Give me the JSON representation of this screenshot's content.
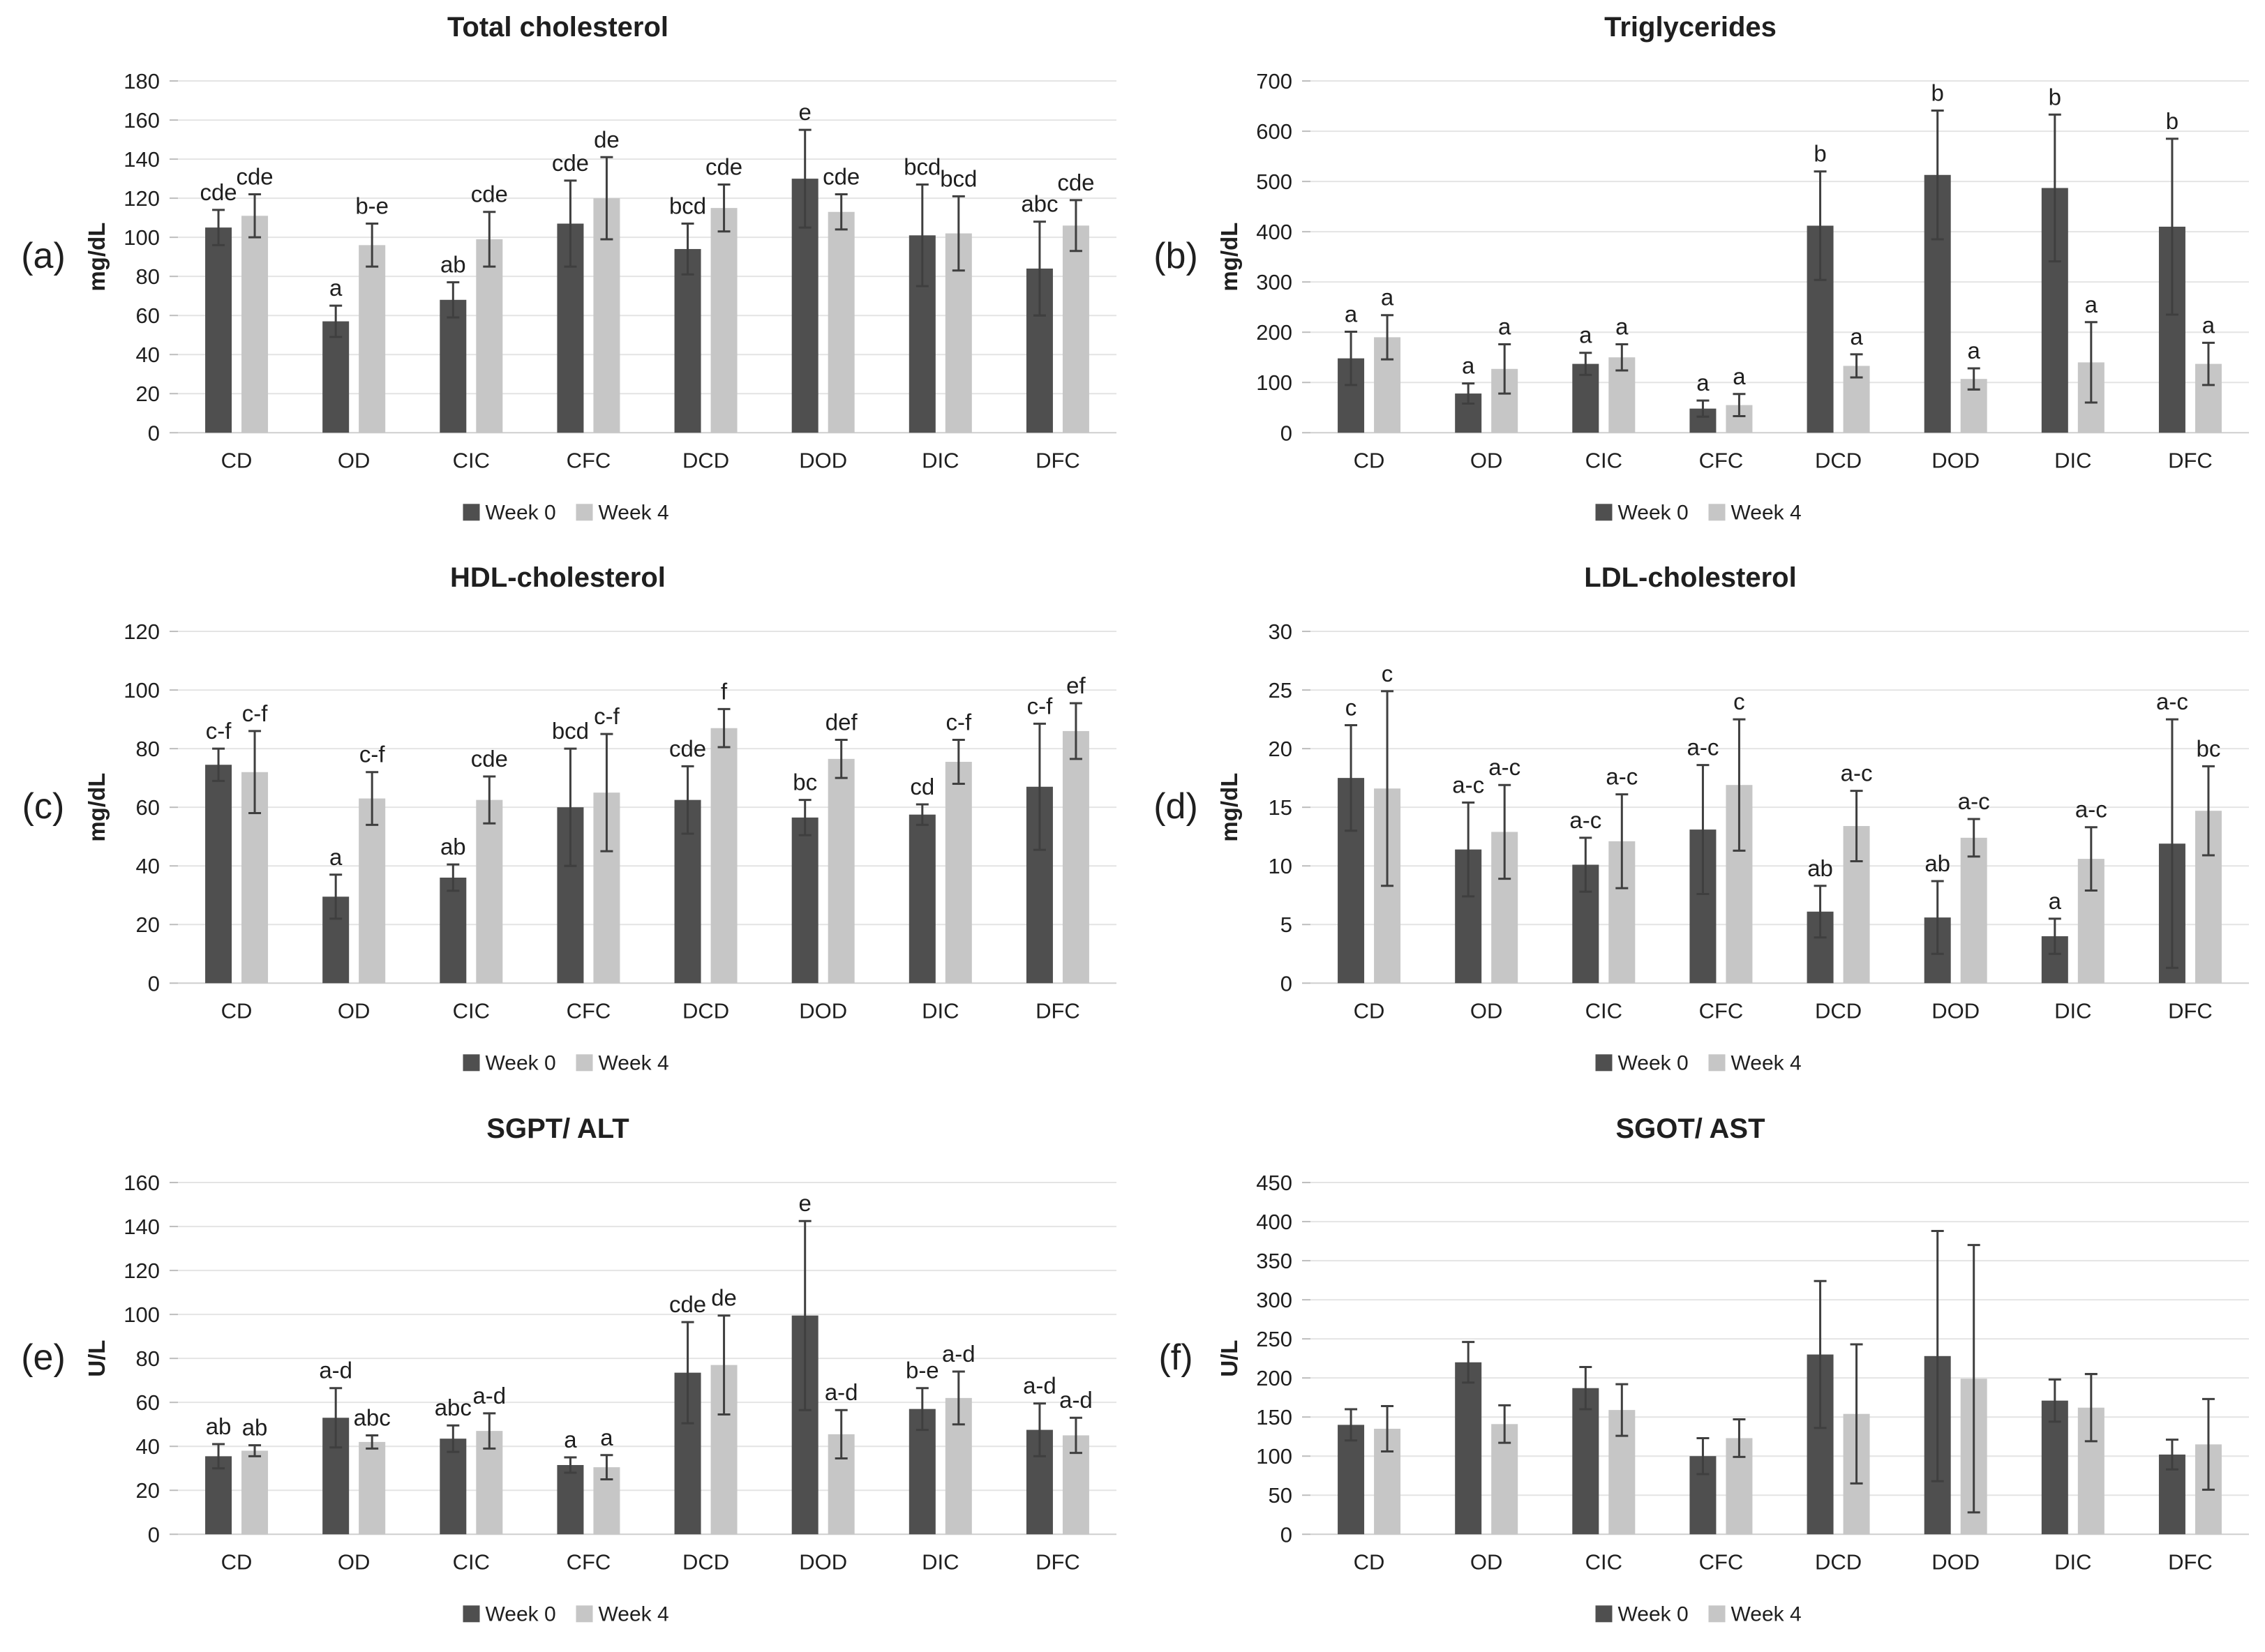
{
  "page": {
    "background": "#ffffff"
  },
  "legend": {
    "items": [
      {
        "label": "Week 0",
        "color": "#4f4f4f"
      },
      {
        "label": "Week 4",
        "color": "#c6c6c6"
      }
    ],
    "position": "bottom-center"
  },
  "style": {
    "gridline_color": "#e4e4e4",
    "baseline_color": "#cfcfcf",
    "tick_color": "#bdbdbd",
    "error_color": "#3f3f3f",
    "text_color": "#1f1f1f"
  },
  "chart_data": [
    {
      "id": "a",
      "panel_label": "(a)",
      "type": "bar",
      "title": "Total cholesterol",
      "ylabel": "mg/dL",
      "ylim": [
        0,
        180
      ],
      "ytick_step": 20,
      "grid": true,
      "categories": [
        "CD",
        "OD",
        "CIC",
        "CFC",
        "DCD",
        "DOD",
        "DIC",
        "DFC"
      ],
      "series": [
        {
          "name": "Week 0",
          "values": [
            105,
            57,
            68,
            107,
            94,
            130,
            101,
            84
          ],
          "errors": [
            9,
            8,
            9,
            22,
            13,
            25,
            26,
            24
          ],
          "sig_labels": [
            "cde",
            "a",
            "ab",
            "cde",
            "bcd",
            "e",
            "bcd",
            "abc"
          ]
        },
        {
          "name": "Week 4",
          "values": [
            111,
            96,
            99,
            120,
            115,
            113,
            102,
            106
          ],
          "errors": [
            11,
            11,
            14,
            21,
            12,
            9,
            19,
            13
          ],
          "sig_labels": [
            "cde",
            "b-e",
            "cde",
            "de",
            "cde",
            "cde",
            "bcd",
            "cde"
          ]
        }
      ]
    },
    {
      "id": "b",
      "panel_label": "(b)",
      "type": "bar",
      "title": "Triglycerides",
      "ylabel": "mg/dL",
      "ylim": [
        0,
        700
      ],
      "ytick_step": 100,
      "grid": true,
      "categories": [
        "CD",
        "OD",
        "CIC",
        "CFC",
        "DCD",
        "DOD",
        "DIC",
        "DFC"
      ],
      "series": [
        {
          "name": "Week 0",
          "values": [
            148,
            78,
            137,
            48,
            412,
            513,
            487,
            410
          ],
          "errors": [
            53,
            20,
            22,
            16,
            108,
            128,
            146,
            175
          ],
          "sig_labels": [
            "a",
            "a",
            "a",
            "a",
            "b",
            "b",
            "b",
            "b"
          ]
        },
        {
          "name": "Week 4",
          "values": [
            190,
            127,
            150,
            55,
            133,
            107,
            140,
            137
          ],
          "errors": [
            44,
            49,
            26,
            22,
            23,
            21,
            80,
            42
          ],
          "sig_labels": [
            "a",
            "a",
            "a",
            "a",
            "a",
            "a",
            "a",
            "a"
          ]
        }
      ]
    },
    {
      "id": "c",
      "panel_label": "(c)",
      "type": "bar",
      "title": "HDL-cholesterol",
      "ylabel": "mg/dL",
      "ylim": [
        0,
        120
      ],
      "ytick_step": 20,
      "grid": true,
      "categories": [
        "CD",
        "OD",
        "CIC",
        "CFC",
        "DCD",
        "DOD",
        "DIC",
        "DFC"
      ],
      "series": [
        {
          "name": "Week 0",
          "values": [
            74.5,
            29.5,
            36,
            60,
            62.5,
            56.5,
            57.5,
            67
          ],
          "errors": [
            5.5,
            7.5,
            4.5,
            20,
            11.5,
            6,
            3.5,
            21.5
          ],
          "sig_labels": [
            "c-f",
            "a",
            "ab",
            "bcd",
            "cde",
            "bc",
            "cd",
            "c-f"
          ]
        },
        {
          "name": "Week 4",
          "values": [
            72,
            63,
            62.5,
            65,
            87,
            76.5,
            75.5,
            86
          ],
          "errors": [
            14,
            9,
            8,
            20,
            6.5,
            6.5,
            7.5,
            9.5
          ],
          "sig_labels": [
            "c-f",
            "c-f",
            "cde",
            "c-f",
            "f",
            "def",
            "c-f",
            "ef"
          ]
        }
      ]
    },
    {
      "id": "d",
      "panel_label": "(d)",
      "type": "bar",
      "title": "LDL-cholesterol",
      "ylabel": "mg/dL",
      "ylim": [
        0,
        30
      ],
      "ytick_step": 5,
      "grid": true,
      "categories": [
        "CD",
        "OD",
        "CIC",
        "CFC",
        "DCD",
        "DOD",
        "DIC",
        "DFC"
      ],
      "series": [
        {
          "name": "Week 0",
          "values": [
            17.5,
            11.4,
            10.1,
            13.1,
            6.1,
            5.6,
            4.0,
            11.9
          ],
          "errors": [
            4.5,
            4.0,
            2.3,
            5.5,
            2.2,
            3.1,
            1.5,
            10.6
          ],
          "sig_labels": [
            "c",
            "a-c",
            "a-c",
            "a-c",
            "ab",
            "ab",
            "a",
            "a-c"
          ]
        },
        {
          "name": "Week 4",
          "values": [
            16.6,
            12.9,
            12.1,
            16.9,
            13.4,
            12.4,
            10.6,
            14.7
          ],
          "errors": [
            8.3,
            4.0,
            4.0,
            5.6,
            3.0,
            1.6,
            2.7,
            3.8
          ],
          "sig_labels": [
            "c",
            "a-c",
            "a-c",
            "c",
            "a-c",
            "a-c",
            "a-c",
            "bc"
          ]
        }
      ]
    },
    {
      "id": "e",
      "panel_label": "(e)",
      "type": "bar",
      "title": "SGPT/ ALT",
      "ylabel": "U/L",
      "ylim": [
        0,
        160
      ],
      "ytick_step": 20,
      "grid": true,
      "categories": [
        "CD",
        "OD",
        "CIC",
        "CFC",
        "DCD",
        "DOD",
        "DIC",
        "DFC"
      ],
      "series": [
        {
          "name": "Week 0",
          "values": [
            35.5,
            53,
            43.5,
            31.5,
            73.5,
            99.5,
            57,
            47.5
          ],
          "errors": [
            5.5,
            13.5,
            6,
            3.5,
            23,
            43,
            9.5,
            12
          ],
          "sig_labels": [
            "ab",
            "a-d",
            "abc",
            "a",
            "cde",
            "e",
            "b-e",
            "a-d"
          ]
        },
        {
          "name": "Week 4",
          "values": [
            38,
            42,
            47,
            30.5,
            77,
            45.5,
            62,
            45
          ],
          "errors": [
            2.5,
            3,
            8,
            5.5,
            22.5,
            11,
            12,
            8
          ],
          "sig_labels": [
            "ab",
            "abc",
            "a-d",
            "a",
            "de",
            "a-d",
            "a-d",
            "a-d"
          ]
        }
      ]
    },
    {
      "id": "f",
      "panel_label": "(f)",
      "type": "bar",
      "title": "SGOT/ AST",
      "ylabel": "U/L",
      "ylim": [
        0,
        450
      ],
      "ytick_step": 50,
      "grid": true,
      "categories": [
        "CD",
        "OD",
        "CIC",
        "CFC",
        "DCD",
        "DOD",
        "DIC",
        "DFC"
      ],
      "series": [
        {
          "name": "Week 0",
          "values": [
            140,
            220,
            187,
            100,
            230,
            228,
            171,
            102
          ],
          "errors": [
            20,
            26,
            27,
            23,
            94,
            160,
            27,
            19
          ],
          "sig_labels": [
            "",
            "",
            "",
            "",
            "",
            "",
            "",
            ""
          ]
        },
        {
          "name": "Week 4",
          "values": [
            135,
            141,
            159,
            123,
            154,
            199,
            162,
            115
          ],
          "errors": [
            29,
            24,
            33,
            24,
            89,
            171,
            43,
            58
          ],
          "sig_labels": [
            "",
            "",
            "",
            "",
            "",
            "",
            "",
            ""
          ]
        }
      ]
    }
  ]
}
